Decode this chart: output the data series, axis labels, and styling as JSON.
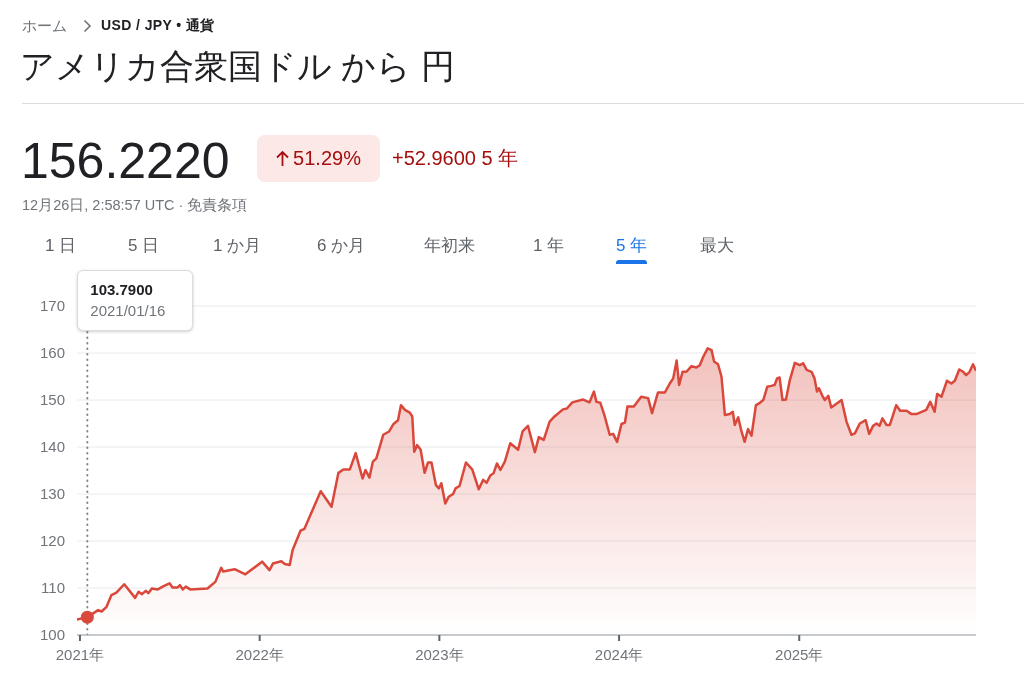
{
  "chart_data": {
    "type": "area",
    "title": "アメリカ合衆国ドル から 円",
    "x": [
      "2020-12-26",
      "2021-01-16",
      "2021-02-07",
      "2021-02-14",
      "2021-02-24",
      "2021-03-06",
      "2021-03-16",
      "2021-04-01",
      "2021-04-23",
      "2021-04-30",
      "2021-05-07",
      "2021-05-15",
      "2021-05-20",
      "2021-05-27",
      "2021-06-08",
      "2021-06-20",
      "2021-07-02",
      "2021-07-08",
      "2021-07-18",
      "2021-07-23",
      "2021-07-29",
      "2021-08-04",
      "2021-08-13",
      "2021-09-17",
      "2021-10-03",
      "2021-10-15",
      "2021-10-19",
      "2021-11-11",
      "2021-12-03",
      "2022-01-06",
      "2022-01-21",
      "2022-01-28",
      "2022-02-14",
      "2022-02-21",
      "2022-03-03",
      "2022-03-09",
      "2022-03-25",
      "2022-04-02",
      "2022-05-05",
      "2022-05-27",
      "2022-06-10",
      "2022-06-20",
      "2022-07-03",
      "2022-07-15",
      "2022-07-29",
      "2022-08-04",
      "2022-08-12",
      "2022-08-19",
      "2022-08-26",
      "2022-09-09",
      "2022-09-21",
      "2022-09-30",
      "2022-10-09",
      "2022-10-15",
      "2022-10-23",
      "2022-11-02",
      "2022-11-07",
      "2022-11-11",
      "2022-11-17",
      "2022-11-24",
      "2022-12-02",
      "2022-12-09",
      "2022-12-16",
      "2022-12-25",
      "2022-12-31",
      "2023-01-05",
      "2023-01-13",
      "2023-01-20",
      "2023-01-29",
      "2023-02-03",
      "2023-02-11",
      "2023-02-24",
      "2023-03-09",
      "2023-03-22",
      "2023-03-31",
      "2023-04-07",
      "2023-04-15",
      "2023-04-21",
      "2023-04-28",
      "2023-05-05",
      "2023-05-14",
      "2023-05-25",
      "2023-06-10",
      "2023-06-19",
      "2023-06-30",
      "2023-07-14",
      "2023-07-22",
      "2023-08-01",
      "2023-08-13",
      "2023-08-23",
      "2023-09-09",
      "2023-09-17",
      "2023-09-28",
      "2023-10-20",
      "2023-11-02",
      "2023-11-11",
      "2023-11-16",
      "2023-11-24",
      "2023-12-03",
      "2023-12-13",
      "2023-12-20",
      "2023-12-28",
      "2024-01-06",
      "2024-01-13",
      "2024-01-18",
      "2024-01-31",
      "2024-02-15",
      "2024-02-29",
      "2024-03-08",
      "2024-03-20",
      "2024-04-03",
      "2024-04-13",
      "2024-04-20",
      "2024-04-27",
      "2024-05-02",
      "2024-05-09",
      "2024-05-17",
      "2024-05-27",
      "2024-06-06",
      "2024-06-13",
      "2024-06-20",
      "2024-06-29",
      "2024-07-07",
      "2024-07-12",
      "2024-07-20",
      "2024-07-27",
      "2024-08-03",
      "2024-08-13",
      "2024-08-19",
      "2024-08-23",
      "2024-08-30",
      "2024-09-05",
      "2024-09-12",
      "2024-09-19",
      "2024-09-26",
      "2024-10-05",
      "2024-10-13",
      "2024-10-20",
      "2024-10-28",
      "2024-11-05",
      "2024-11-12",
      "2024-11-17",
      "2024-11-22",
      "2024-11-28",
      "2024-12-05",
      "2024-12-13",
      "2024-12-23",
      "2025-01-02",
      "2025-01-09",
      "2025-01-16",
      "2025-01-26",
      "2025-02-01",
      "2025-02-06",
      "2025-02-10",
      "2025-02-17",
      "2025-02-22",
      "2025-03-01",
      "2025-03-07",
      "2025-03-28",
      "2025-04-07",
      "2025-04-17",
      "2025-04-24",
      "2025-05-04",
      "2025-05-16",
      "2025-05-23",
      "2025-05-31",
      "2025-06-07",
      "2025-06-13",
      "2025-06-19",
      "2025-06-27",
      "2025-07-04",
      "2025-07-17",
      "2025-07-25",
      "2025-08-07",
      "2025-08-17",
      "2025-08-27",
      "2025-09-16",
      "2025-09-24",
      "2025-10-03",
      "2025-10-08",
      "2025-10-17",
      "2025-10-28",
      "2025-11-06",
      "2025-11-13",
      "2025-11-22",
      "2025-11-30",
      "2025-12-06",
      "2025-12-13",
      "2025-12-20",
      "2025-12-26"
    ],
    "series": [
      {
        "color": "#d9483b",
        "values": [
          103.3,
          103.8,
          105.3,
          105.0,
          106.0,
          108.5,
          109.0,
          110.8,
          107.9,
          109.2,
          108.7,
          109.4,
          108.9,
          109.9,
          109.7,
          110.4,
          111.0,
          110.1,
          110.1,
          110.6,
          109.7,
          110.3,
          109.7,
          109.9,
          111.3,
          114.3,
          113.5,
          114.0,
          112.9,
          115.6,
          113.8,
          115.2,
          115.7,
          115.1,
          114.9,
          118.1,
          122.2,
          122.6,
          130.6,
          127.3,
          134.5,
          135.2,
          135.2,
          138.7,
          133.3,
          135.1,
          133.5,
          136.9,
          137.6,
          142.6,
          143.3,
          144.9,
          145.7,
          148.9,
          147.9,
          147.3,
          146.5,
          139.0,
          140.4,
          139.4,
          134.5,
          136.7,
          136.7,
          131.9,
          131.2,
          132.3,
          128.0,
          129.4,
          130.0,
          131.2,
          131.7,
          136.7,
          135.2,
          131.0,
          133.0,
          132.4,
          134.0,
          134.4,
          136.5,
          135.1,
          136.9,
          140.8,
          139.4,
          143.3,
          144.5,
          138.9,
          142.1,
          141.5,
          145.4,
          146.5,
          148.0,
          148.2,
          149.5,
          150.1,
          149.5,
          151.8,
          149.6,
          149.4,
          146.5,
          142.6,
          142.8,
          141.1,
          144.9,
          145.2,
          148.6,
          148.6,
          150.7,
          150.4,
          147.2,
          151.6,
          151.6,
          153.5,
          154.6,
          158.4,
          153.2,
          156.0,
          156.0,
          157.2,
          156.9,
          157.4,
          159.2,
          161.0,
          160.6,
          158.2,
          157.6,
          155.0,
          146.8,
          147.0,
          147.5,
          144.7,
          146.3,
          143.6,
          141.1,
          143.8,
          142.4,
          148.9,
          149.4,
          150.0,
          152.8,
          153.0,
          153.2,
          154.6,
          154.8,
          150.0,
          150.1,
          154.3,
          157.9,
          157.4,
          157.8,
          156.4,
          156.0,
          154.6,
          151.8,
          152.5,
          150.9,
          150.0,
          150.9,
          148.4,
          150.0,
          145.4,
          142.6,
          142.9,
          145.0,
          145.7,
          142.8,
          144.5,
          145.0,
          144.5,
          146.1,
          144.7,
          144.7,
          148.9,
          147.7,
          147.7,
          147.0,
          147.0,
          147.9,
          149.6,
          147.5,
          151.3,
          150.7,
          154.1,
          153.5,
          154.1,
          156.5,
          156.0,
          155.3,
          156.0,
          157.6,
          156.2
        ]
      },
      {
        "type": "scatter",
        "x": [
          "2021-01-16"
        ],
        "values": [
          103.8
        ],
        "color": "#d9483b",
        "marker": "circle"
      }
    ],
    "xlim": [
      "2020-12-26",
      "2025-12-26"
    ],
    "xticks": [
      {
        "value": "2021-01-01",
        "label": "2021年"
      },
      {
        "value": "2022-01-01",
        "label": "2022年"
      },
      {
        "value": "2023-01-01",
        "label": "2023年"
      },
      {
        "value": "2024-01-01",
        "label": "2024年"
      },
      {
        "value": "2025-01-01",
        "label": "2025年"
      }
    ],
    "ylim": [
      100,
      170
    ],
    "yticks": [
      100,
      110,
      120,
      130,
      140,
      150,
      160,
      170
    ],
    "grid": "y",
    "ref_lines": [
      {
        "axis": "x",
        "value": "2021-01-16",
        "label": "2021/01/16",
        "line_style": "dotted",
        "color": "#80868b"
      }
    ],
    "annotations": [
      "ホーム",
      "USD / JPY • 通貨",
      "156.2220",
      "51.29%",
      "+52.9600 5 年",
      "12月26日, 2:58:57 UTC · 免責条項",
      "1 日",
      "5 日",
      "1 か月",
      "6 か月",
      "年初来",
      "1 年",
      "5 年",
      "最大",
      "103.7900"
    ]
  }
}
